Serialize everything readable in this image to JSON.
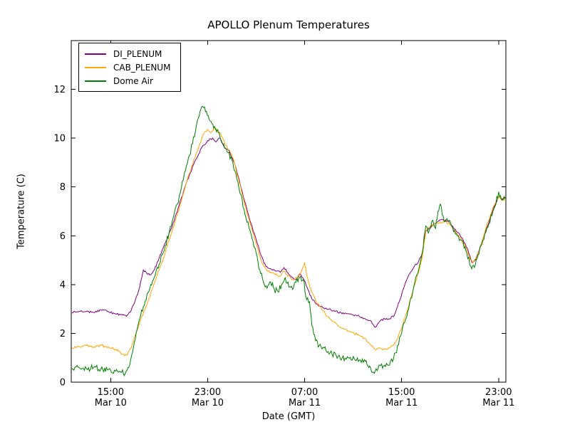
{
  "chart_data": {
    "type": "line",
    "title": "APOLLO Plenum Temperatures",
    "xlabel": "Date (GMT)",
    "ylabel": "Temperature (C)",
    "x_unit": "hours since Mar 10 00:00 GMT",
    "xlim": [
      11.75,
      47.6
    ],
    "ylim": [
      0,
      14
    ],
    "yticks": [
      0,
      2,
      4,
      6,
      8,
      10,
      12
    ],
    "xticks": [
      {
        "hour": 15,
        "time": "15:00",
        "date": "Mar 10"
      },
      {
        "hour": 23,
        "time": "23:00",
        "date": "Mar 10"
      },
      {
        "hour": 31,
        "time": "07:00",
        "date": "Mar 11"
      },
      {
        "hour": 39,
        "time": "15:00",
        "date": "Mar 11"
      },
      {
        "hour": 47,
        "time": "23:00",
        "date": "Mar 11"
      }
    ],
    "grid": false,
    "legend_position": "upper-left",
    "series": [
      {
        "name": "DI_PLENUM",
        "color": "#800080",
        "noise": 0.04,
        "points": [
          [
            11.8,
            2.85
          ],
          [
            12.4,
            2.9
          ],
          [
            13.0,
            2.9
          ],
          [
            13.6,
            2.85
          ],
          [
            14.2,
            2.95
          ],
          [
            14.8,
            2.9
          ],
          [
            15.4,
            2.8
          ],
          [
            16.0,
            2.75
          ],
          [
            16.3,
            2.7
          ],
          [
            16.7,
            2.95
          ],
          [
            17.0,
            3.3
          ],
          [
            17.4,
            3.9
          ],
          [
            17.7,
            4.6
          ],
          [
            18.0,
            4.45
          ],
          [
            18.3,
            4.4
          ],
          [
            18.6,
            4.6
          ],
          [
            19.0,
            5.1
          ],
          [
            19.5,
            5.7
          ],
          [
            20.0,
            6.3
          ],
          [
            20.5,
            7.0
          ],
          [
            21.0,
            7.8
          ],
          [
            21.5,
            8.5
          ],
          [
            22.0,
            9.1
          ],
          [
            22.5,
            9.6
          ],
          [
            23.0,
            9.9
          ],
          [
            23.4,
            10.0
          ],
          [
            23.7,
            9.85
          ],
          [
            24.0,
            10.0
          ],
          [
            24.4,
            9.6
          ],
          [
            24.8,
            9.45
          ],
          [
            25.2,
            9.0
          ],
          [
            25.6,
            8.3
          ],
          [
            26.0,
            7.5
          ],
          [
            26.5,
            6.6
          ],
          [
            27.0,
            5.85
          ],
          [
            27.4,
            5.2
          ],
          [
            27.8,
            4.75
          ],
          [
            28.2,
            4.65
          ],
          [
            28.6,
            4.55
          ],
          [
            29.0,
            4.5
          ],
          [
            29.3,
            4.7
          ],
          [
            29.6,
            4.5
          ],
          [
            30.0,
            4.3
          ],
          [
            30.3,
            4.2
          ],
          [
            30.6,
            4.45
          ],
          [
            30.9,
            4.25
          ],
          [
            31.2,
            3.9
          ],
          [
            31.6,
            3.4
          ],
          [
            32.0,
            3.2
          ],
          [
            32.5,
            3.05
          ],
          [
            33.0,
            3.0
          ],
          [
            33.5,
            2.9
          ],
          [
            34.0,
            2.85
          ],
          [
            34.5,
            2.8
          ],
          [
            35.0,
            2.75
          ],
          [
            35.5,
            2.7
          ],
          [
            36.0,
            2.6
          ],
          [
            36.5,
            2.5
          ],
          [
            36.8,
            2.25
          ],
          [
            37.2,
            2.5
          ],
          [
            37.6,
            2.6
          ],
          [
            38.0,
            2.6
          ],
          [
            38.4,
            2.75
          ],
          [
            38.8,
            3.3
          ],
          [
            39.2,
            3.9
          ],
          [
            39.6,
            4.4
          ],
          [
            40.0,
            4.7
          ],
          [
            40.4,
            4.95
          ],
          [
            40.7,
            5.3
          ],
          [
            41.0,
            6.2
          ],
          [
            41.3,
            6.3
          ],
          [
            41.7,
            6.5
          ],
          [
            42.0,
            6.6
          ],
          [
            42.4,
            6.65
          ],
          [
            42.8,
            6.6
          ],
          [
            43.2,
            6.4
          ],
          [
            43.6,
            6.15
          ],
          [
            44.0,
            5.9
          ],
          [
            44.4,
            5.5
          ],
          [
            44.8,
            4.9
          ],
          [
            45.1,
            5.0
          ],
          [
            45.5,
            5.6
          ],
          [
            46.0,
            6.3
          ],
          [
            46.5,
            7.0
          ],
          [
            47.0,
            7.6
          ],
          [
            47.3,
            7.5
          ],
          [
            47.6,
            7.55
          ]
        ]
      },
      {
        "name": "CAB_PLENUM",
        "color": "#ffa500",
        "noise": 0.05,
        "points": [
          [
            11.8,
            1.4
          ],
          [
            12.4,
            1.45
          ],
          [
            13.0,
            1.5
          ],
          [
            13.6,
            1.45
          ],
          [
            14.2,
            1.5
          ],
          [
            14.8,
            1.45
          ],
          [
            15.4,
            1.35
          ],
          [
            16.0,
            1.15
          ],
          [
            16.3,
            1.1
          ],
          [
            16.7,
            1.4
          ],
          [
            17.0,
            1.9
          ],
          [
            17.5,
            2.6
          ],
          [
            18.0,
            3.2
          ],
          [
            18.5,
            3.9
          ],
          [
            19.0,
            4.6
          ],
          [
            19.5,
            5.3
          ],
          [
            20.0,
            6.1
          ],
          [
            20.6,
            7.0
          ],
          [
            21.2,
            8.1
          ],
          [
            21.8,
            9.0
          ],
          [
            22.3,
            9.7
          ],
          [
            22.7,
            10.2
          ],
          [
            23.0,
            10.35
          ],
          [
            23.3,
            10.25
          ],
          [
            23.6,
            10.4
          ],
          [
            23.9,
            10.3
          ],
          [
            24.2,
            10.05
          ],
          [
            24.5,
            9.7
          ],
          [
            24.8,
            9.5
          ],
          [
            25.2,
            9.0
          ],
          [
            25.6,
            8.2
          ],
          [
            26.0,
            7.4
          ],
          [
            26.5,
            6.5
          ],
          [
            27.0,
            5.7
          ],
          [
            27.4,
            5.0
          ],
          [
            27.8,
            4.65
          ],
          [
            28.2,
            4.5
          ],
          [
            28.6,
            4.4
          ],
          [
            29.0,
            4.35
          ],
          [
            29.3,
            4.55
          ],
          [
            29.6,
            4.35
          ],
          [
            30.0,
            4.2
          ],
          [
            30.4,
            4.3
          ],
          [
            30.7,
            4.5
          ],
          [
            31.0,
            4.9
          ],
          [
            31.2,
            4.35
          ],
          [
            31.5,
            3.8
          ],
          [
            31.9,
            3.35
          ],
          [
            32.3,
            3.1
          ],
          [
            32.7,
            2.8
          ],
          [
            33.1,
            2.6
          ],
          [
            33.6,
            2.4
          ],
          [
            34.1,
            2.2
          ],
          [
            34.6,
            2.1
          ],
          [
            35.1,
            2.0
          ],
          [
            35.6,
            1.9
          ],
          [
            36.0,
            1.8
          ],
          [
            36.4,
            1.55
          ],
          [
            36.8,
            1.35
          ],
          [
            37.2,
            1.4
          ],
          [
            37.6,
            1.35
          ],
          [
            38.0,
            1.4
          ],
          [
            38.5,
            1.65
          ],
          [
            39.0,
            2.2
          ],
          [
            39.5,
            3.0
          ],
          [
            40.0,
            3.9
          ],
          [
            40.4,
            4.5
          ],
          [
            40.7,
            5.1
          ],
          [
            41.0,
            6.2
          ],
          [
            41.4,
            6.4
          ],
          [
            41.8,
            6.5
          ],
          [
            42.2,
            6.55
          ],
          [
            42.6,
            6.6
          ],
          [
            43.0,
            6.45
          ],
          [
            43.4,
            6.2
          ],
          [
            43.8,
            5.95
          ],
          [
            44.2,
            5.6
          ],
          [
            44.6,
            5.1
          ],
          [
            44.9,
            4.9
          ],
          [
            45.2,
            5.1
          ],
          [
            45.6,
            5.7
          ],
          [
            46.0,
            6.4
          ],
          [
            46.5,
            7.1
          ],
          [
            47.0,
            7.6
          ],
          [
            47.3,
            7.45
          ],
          [
            47.6,
            7.5
          ]
        ]
      },
      {
        "name": "Dome Air",
        "color": "#008000",
        "noise": 0.12,
        "points": [
          [
            11.8,
            0.55
          ],
          [
            12.4,
            0.6
          ],
          [
            13.0,
            0.55
          ],
          [
            13.6,
            0.6
          ],
          [
            14.2,
            0.55
          ],
          [
            14.8,
            0.5
          ],
          [
            15.4,
            0.45
          ],
          [
            15.9,
            0.4
          ],
          [
            16.2,
            0.35
          ],
          [
            16.5,
            0.6
          ],
          [
            16.8,
            1.2
          ],
          [
            17.1,
            2.0
          ],
          [
            17.4,
            2.6
          ],
          [
            17.7,
            3.1
          ],
          [
            18.0,
            3.6
          ],
          [
            18.3,
            4.0
          ],
          [
            18.6,
            4.3
          ],
          [
            19.0,
            4.85
          ],
          [
            19.5,
            5.6
          ],
          [
            20.0,
            6.4
          ],
          [
            20.5,
            7.3
          ],
          [
            21.0,
            8.3
          ],
          [
            21.5,
            9.3
          ],
          [
            22.0,
            10.3
          ],
          [
            22.3,
            10.9
          ],
          [
            22.6,
            11.3
          ],
          [
            22.9,
            11.1
          ],
          [
            23.2,
            10.7
          ],
          [
            23.5,
            10.4
          ],
          [
            23.8,
            10.35
          ],
          [
            24.1,
            9.9
          ],
          [
            24.4,
            9.6
          ],
          [
            24.7,
            9.4
          ],
          [
            25.0,
            9.1
          ],
          [
            25.5,
            8.2
          ],
          [
            26.0,
            7.1
          ],
          [
            26.5,
            6.2
          ],
          [
            27.0,
            5.3
          ],
          [
            27.3,
            4.6
          ],
          [
            27.6,
            4.1
          ],
          [
            27.9,
            3.85
          ],
          [
            28.2,
            4.1
          ],
          [
            28.5,
            3.8
          ],
          [
            28.8,
            3.7
          ],
          [
            29.1,
            4.0
          ],
          [
            29.4,
            4.3
          ],
          [
            29.7,
            3.9
          ],
          [
            30.0,
            3.8
          ],
          [
            30.3,
            4.1
          ],
          [
            30.6,
            4.3
          ],
          [
            30.9,
            4.2
          ],
          [
            31.1,
            3.5
          ],
          [
            31.4,
            3.3
          ],
          [
            31.6,
            2.3
          ],
          [
            31.9,
            1.7
          ],
          [
            32.2,
            1.5
          ],
          [
            32.6,
            1.4
          ],
          [
            33.1,
            1.2
          ],
          [
            33.6,
            1.1
          ],
          [
            34.1,
            1.0
          ],
          [
            34.6,
            1.0
          ],
          [
            35.1,
            0.95
          ],
          [
            35.6,
            0.9
          ],
          [
            36.0,
            0.85
          ],
          [
            36.3,
            0.6
          ],
          [
            36.6,
            0.4
          ],
          [
            36.9,
            0.55
          ],
          [
            37.2,
            0.7
          ],
          [
            37.5,
            0.65
          ],
          [
            38.0,
            0.7
          ],
          [
            38.5,
            1.2
          ],
          [
            39.0,
            2.0
          ],
          [
            39.5,
            2.9
          ],
          [
            40.0,
            3.9
          ],
          [
            40.4,
            4.6
          ],
          [
            40.7,
            5.3
          ],
          [
            41.0,
            6.4
          ],
          [
            41.2,
            6.1
          ],
          [
            41.5,
            6.6
          ],
          [
            41.8,
            6.3
          ],
          [
            42.0,
            7.0
          ],
          [
            42.2,
            7.3
          ],
          [
            42.5,
            6.6
          ],
          [
            42.9,
            6.6
          ],
          [
            43.2,
            6.35
          ],
          [
            43.6,
            6.0
          ],
          [
            44.0,
            5.8
          ],
          [
            44.3,
            5.4
          ],
          [
            44.7,
            4.75
          ],
          [
            45.0,
            4.7
          ],
          [
            45.3,
            5.2
          ],
          [
            45.7,
            5.8
          ],
          [
            46.2,
            6.5
          ],
          [
            46.7,
            7.2
          ],
          [
            47.0,
            7.8
          ],
          [
            47.3,
            7.45
          ],
          [
            47.6,
            7.6
          ]
        ]
      }
    ]
  }
}
